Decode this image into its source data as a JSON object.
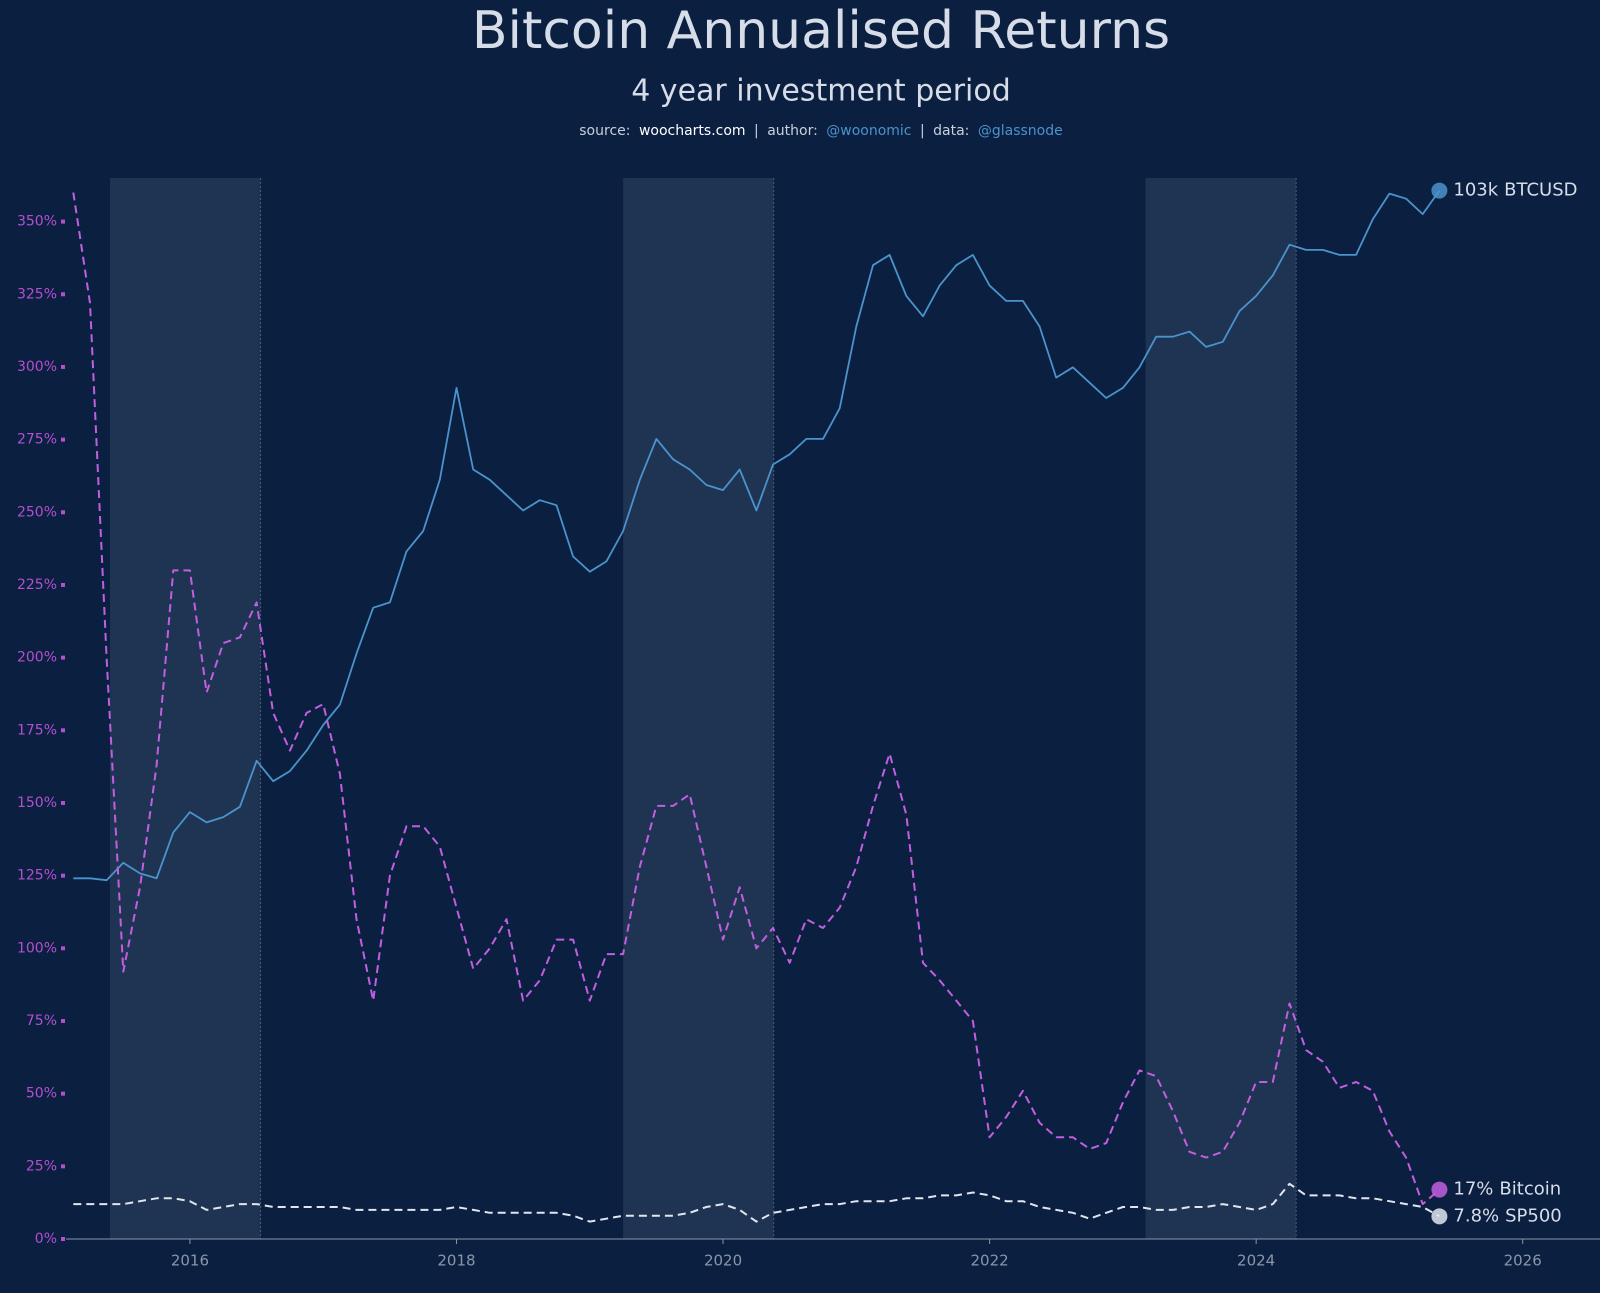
{
  "chart_data": {
    "type": "line",
    "title": "Bitcoin Annualised Returns",
    "subtitle": "4 year investment period",
    "source_label": "source:",
    "source": "woocharts.com",
    "separator": "|",
    "author_label": "author:",
    "author": "@woonomic",
    "data_label": "data:",
    "data_source": "@glassnode",
    "x": [
      2015.125,
      2015.25,
      2015.375,
      2015.5,
      2015.625,
      2015.75,
      2015.875,
      2016,
      2016.125,
      2016.25,
      2016.375,
      2016.5,
      2016.625,
      2016.75,
      2016.875,
      2017,
      2017.125,
      2017.25,
      2017.375,
      2017.5,
      2017.625,
      2017.75,
      2017.875,
      2018,
      2018.125,
      2018.25,
      2018.375,
      2018.5,
      2018.625,
      2018.75,
      2018.875,
      2019,
      2019.125,
      2019.25,
      2019.375,
      2019.5,
      2019.625,
      2019.75,
      2019.875,
      2020,
      2020.125,
      2020.25,
      2020.375,
      2020.5,
      2020.625,
      2020.75,
      2020.875,
      2021,
      2021.125,
      2021.25,
      2021.375,
      2021.5,
      2021.625,
      2021.75,
      2021.875,
      2022,
      2022.125,
      2022.25,
      2022.375,
      2022.5,
      2022.625,
      2022.75,
      2022.875,
      2023,
      2023.125,
      2023.25,
      2023.375,
      2023.5,
      2023.625,
      2023.75,
      2023.875,
      2024,
      2024.125,
      2024.25,
      2024.375,
      2024.5,
      2024.625,
      2024.75,
      2024.875,
      2025,
      2025.125,
      2025.25,
      2025.375
    ],
    "series": [
      {
        "name": "BTCUSD",
        "color": "#4a93cc",
        "axis": "y2",
        "dashed": false,
        "values": [
          248,
          248,
          244,
          284,
          259,
          248,
          371,
          443,
          405,
          424,
          464,
          695,
          581,
          635,
          760,
          951,
          1137,
          1778,
          2660,
          2785,
          4354,
          5210,
          8163,
          18270,
          8930,
          8163,
          7126,
          6235,
          6821,
          6529,
          4167,
          3646,
          3989,
          5210,
          8163,
          11680,
          9768,
          8930,
          7795,
          7458,
          8930,
          6235,
          9329,
          10205,
          11680,
          11680,
          15275,
          31290,
          53560,
          58590,
          40910,
          34220,
          44780,
          53560,
          58590,
          44780,
          39160,
          39160,
          31290,
          19990,
          21870,
          19110,
          16710,
          18270,
          21870,
          28620,
          28620,
          29910,
          26170,
          27350,
          35790,
          40910,
          48970,
          64100,
          61240,
          61240,
          58590,
          58590,
          80130,
          100260,
          95880,
          83820,
          103000
        ],
        "value_labels": [
          null,
          null,
          null,
          null,
          null,
          null,
          null,
          null,
          null,
          null,
          null,
          null,
          null,
          null,
          null,
          null,
          null,
          null,
          null,
          null,
          null,
          null,
          null,
          null,
          null,
          null,
          null,
          null,
          null,
          null,
          null,
          null,
          null,
          null,
          null,
          null,
          null,
          null,
          null,
          null,
          null,
          null,
          null,
          null,
          null,
          null,
          null,
          null,
          null,
          null,
          null,
          null,
          null,
          null,
          null,
          null,
          null,
          null,
          null,
          null,
          null,
          null,
          null,
          null,
          null,
          null,
          null,
          null,
          null,
          null,
          null,
          null,
          null,
          null,
          null,
          null,
          null,
          null,
          null,
          null,
          null,
          null,
          "103k"
        ]
      },
      {
        "name": "Bitcoin",
        "color": "#c25fe0",
        "axis": "y",
        "dashed": true,
        "values": [
          360,
          322,
          200,
          92,
          121,
          163,
          230,
          230,
          188,
          205,
          207,
          219,
          181,
          168,
          181,
          184,
          160,
          110,
          82,
          125,
          142,
          142,
          135,
          114,
          93,
          100,
          110,
          82,
          89,
          103,
          103,
          82,
          98,
          98,
          128,
          149,
          149,
          153,
          128,
          103,
          121,
          100,
          107,
          95,
          110,
          107,
          114,
          128,
          149,
          167,
          146,
          95,
          89,
          82,
          75,
          35,
          42,
          51,
          40,
          35,
          35,
          31,
          33,
          47,
          58,
          56,
          44,
          30,
          28,
          30,
          40,
          54,
          54,
          81,
          65,
          61,
          52,
          54,
          51,
          37,
          28,
          12,
          17
        ],
        "value_labels": [
          null,
          null,
          null,
          null,
          null,
          null,
          null,
          null,
          null,
          null,
          null,
          null,
          null,
          null,
          null,
          null,
          null,
          null,
          null,
          null,
          null,
          null,
          null,
          null,
          null,
          null,
          null,
          null,
          null,
          null,
          null,
          null,
          null,
          null,
          null,
          null,
          null,
          null,
          null,
          null,
          null,
          null,
          null,
          null,
          null,
          null,
          null,
          null,
          null,
          null,
          null,
          null,
          null,
          null,
          null,
          null,
          null,
          null,
          null,
          null,
          null,
          null,
          null,
          null,
          null,
          null,
          null,
          null,
          null,
          null,
          null,
          null,
          null,
          null,
          null,
          null,
          null,
          null,
          null,
          null,
          null,
          null,
          "17%"
        ]
      },
      {
        "name": "SP500",
        "color": "#dfe6ee",
        "axis": "y",
        "dashed": true,
        "values": [
          12,
          12,
          12,
          12,
          13,
          14,
          14,
          13,
          10,
          11,
          12,
          12,
          11,
          11,
          11,
          11,
          11,
          10,
          10,
          10,
          10,
          10,
          10,
          11,
          10,
          9,
          9,
          9,
          9,
          9,
          8,
          6,
          7,
          8,
          8,
          8,
          8,
          9,
          11,
          12,
          10,
          6,
          9,
          10,
          11,
          12,
          12,
          13,
          13,
          13,
          14,
          14,
          15,
          15,
          16,
          15,
          13,
          13,
          11,
          10,
          9,
          7,
          9,
          11,
          11,
          10,
          10,
          11,
          11,
          12,
          11,
          10,
          12,
          19,
          15,
          15,
          15,
          14,
          14,
          13,
          12,
          11,
          7.8
        ],
        "value_labels": [
          null,
          null,
          null,
          null,
          null,
          null,
          null,
          null,
          null,
          null,
          null,
          null,
          null,
          null,
          null,
          null,
          null,
          null,
          null,
          null,
          null,
          null,
          null,
          null,
          null,
          null,
          null,
          null,
          null,
          null,
          null,
          null,
          null,
          null,
          null,
          null,
          null,
          null,
          null,
          null,
          null,
          null,
          null,
          null,
          null,
          null,
          null,
          null,
          null,
          null,
          null,
          null,
          null,
          null,
          null,
          null,
          null,
          null,
          null,
          null,
          null,
          null,
          null,
          null,
          null,
          null,
          null,
          null,
          null,
          null,
          null,
          null,
          null,
          null,
          null,
          null,
          null,
          null,
          null,
          null,
          null,
          null,
          "7.8%"
        ]
      }
    ],
    "xlim": [
      2015.07,
      2026.58
    ],
    "xticks": [
      2016,
      2018,
      2020,
      2022,
      2024,
      2026
    ],
    "ylim": [
      0,
      365
    ],
    "yticks": [
      {
        "value": 0,
        "label": "0%"
      },
      {
        "value": 25,
        "label": "25%"
      },
      {
        "value": 50,
        "label": "50%"
      },
      {
        "value": 75,
        "label": "75%"
      },
      {
        "value": 100,
        "label": "100%"
      },
      {
        "value": 125,
        "label": "125%"
      },
      {
        "value": 150,
        "label": "150%"
      },
      {
        "value": 175,
        "label": "175%"
      },
      {
        "value": 200,
        "label": "200%"
      },
      {
        "value": 225,
        "label": "225%"
      },
      {
        "value": 250,
        "label": "250%"
      },
      {
        "value": 275,
        "label": "275%"
      },
      {
        "value": 300,
        "label": "300%"
      },
      {
        "value": 325,
        "label": "325%"
      },
      {
        "value": 350,
        "label": "350%"
      }
    ],
    "y2lim": [
      10.5,
      115000
    ],
    "y2scale": "log",
    "bands": [
      [
        2015.4,
        2016.53
      ],
      [
        2019.25,
        2020.38
      ],
      [
        2023.17,
        2024.3
      ]
    ],
    "grid": false
  }
}
